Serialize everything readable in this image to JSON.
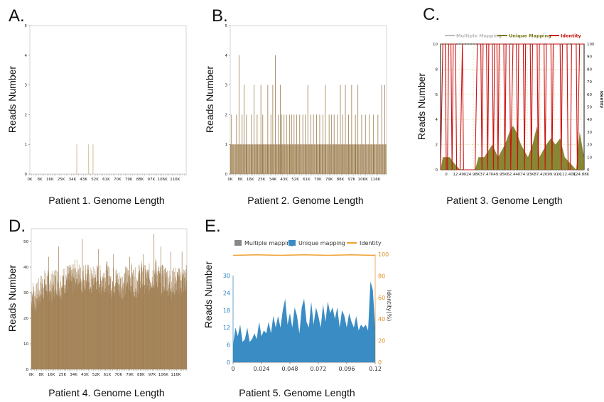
{
  "chart_data": [
    {
      "type": "bar",
      "panel_label": "A.",
      "caption": "Patient 1. Genome Length",
      "ylabel": "Reads Number",
      "ylim": [
        0,
        5
      ],
      "yticks": [
        0,
        1,
        2,
        3,
        4,
        5
      ],
      "xticks": [
        "0K",
        "8K",
        "16K",
        "25K",
        "34K",
        "43K",
        "52K",
        "61K",
        "70K",
        "79K",
        "88K",
        "97K",
        "106K",
        "116K"
      ],
      "xmax": 124900,
      "bar_color": "#c9a97a",
      "bars": [
        [
          37500,
          1
        ],
        [
          47000,
          1
        ],
        [
          50500,
          1
        ]
      ]
    },
    {
      "type": "bar",
      "panel_label": "B.",
      "caption": "Patient 2. Genome Length",
      "ylabel": "Reads Number",
      "ylim": [
        0,
        5
      ],
      "yticks": [
        0,
        1,
        2,
        3,
        4,
        5
      ],
      "xticks": [
        "0K",
        "8K",
        "16K",
        "25K",
        "34K",
        "43K",
        "52K",
        "61K",
        "70K",
        "79K",
        "88K",
        "97K",
        "106K",
        "116K"
      ],
      "xmax": 124900,
      "bar_color": "#9a7a4a",
      "baseline_value": 1,
      "bars": [
        [
          1000,
          2
        ],
        [
          5000,
          2
        ],
        [
          7000,
          4
        ],
        [
          9500,
          2
        ],
        [
          11000,
          3
        ],
        [
          13000,
          2
        ],
        [
          17000,
          2
        ],
        [
          19000,
          3
        ],
        [
          21500,
          2
        ],
        [
          24500,
          3
        ],
        [
          26000,
          2
        ],
        [
          30000,
          3
        ],
        [
          32500,
          2
        ],
        [
          34000,
          3
        ],
        [
          36000,
          4
        ],
        [
          38500,
          2
        ],
        [
          40000,
          3
        ],
        [
          41000,
          2
        ],
        [
          43000,
          2
        ],
        [
          45000,
          2
        ],
        [
          47500,
          2
        ],
        [
          49000,
          2
        ],
        [
          51000,
          2
        ],
        [
          53000,
          2
        ],
        [
          55500,
          2
        ],
        [
          58000,
          2
        ],
        [
          60000,
          2
        ],
        [
          62000,
          3
        ],
        [
          64500,
          2
        ],
        [
          66500,
          2
        ],
        [
          69000,
          2
        ],
        [
          71500,
          2
        ],
        [
          74000,
          2
        ],
        [
          76000,
          3
        ],
        [
          79000,
          2
        ],
        [
          81000,
          2
        ],
        [
          83000,
          2
        ],
        [
          85500,
          2
        ],
        [
          88000,
          3
        ],
        [
          90000,
          2
        ],
        [
          92000,
          3
        ],
        [
          94500,
          2
        ],
        [
          97000,
          3
        ],
        [
          100000,
          2
        ],
        [
          102000,
          3
        ],
        [
          105000,
          2
        ],
        [
          108000,
          2
        ],
        [
          111000,
          2
        ],
        [
          114500,
          2
        ],
        [
          118000,
          2
        ],
        [
          121000,
          3
        ],
        [
          123500,
          3
        ]
      ]
    },
    {
      "type": "area",
      "panel_label": "C.",
      "caption": "Patient 3. Genome Length",
      "ylabel": "Reads Number",
      "y2label": "Identity",
      "ylim": [
        0,
        10
      ],
      "yticks": [
        0,
        2,
        4,
        6,
        8,
        10
      ],
      "y2lim": [
        0,
        100
      ],
      "y2ticks": [
        0,
        10,
        20,
        30,
        40,
        50,
        60,
        70,
        80,
        90,
        100
      ],
      "xticks": [
        "0",
        "12.49K",
        "24.98K",
        "37.47K",
        "49.95K",
        "62.44K",
        "74.93K",
        "87.42K",
        "99.91K",
        "112.40K",
        "124.88K"
      ],
      "xmax": 124880,
      "legend": [
        {
          "name": "Multiple Mapping",
          "color": "#bbbbbb"
        },
        {
          "name": "Unique Mapping",
          "color": "#7a7a1e"
        },
        {
          "name": "Identity",
          "color": "#cc1111"
        }
      ],
      "unique_mapping": [
        [
          0,
          0
        ],
        [
          2000,
          1
        ],
        [
          8000,
          1
        ],
        [
          12000,
          0.5
        ],
        [
          17000,
          0
        ],
        [
          30000,
          0
        ],
        [
          33000,
          1
        ],
        [
          38000,
          1
        ],
        [
          45000,
          2
        ],
        [
          50000,
          1
        ],
        [
          56000,
          2
        ],
        [
          60000,
          3
        ],
        [
          63000,
          3.5
        ],
        [
          66000,
          3
        ],
        [
          70000,
          2
        ],
        [
          76000,
          1
        ],
        [
          80000,
          2
        ],
        [
          84000,
          3.5
        ],
        [
          86000,
          1
        ],
        [
          92000,
          2
        ],
        [
          96000,
          2.5
        ],
        [
          100000,
          2
        ],
        [
          104000,
          2.5
        ],
        [
          108000,
          1
        ],
        [
          113000,
          0.5
        ],
        [
          118000,
          0
        ],
        [
          121000,
          3
        ],
        [
          124880,
          1
        ]
      ],
      "identity": [
        [
          0,
          0
        ],
        [
          2000,
          100
        ],
        [
          4000,
          100
        ],
        [
          5000,
          0
        ],
        [
          6000,
          0
        ],
        [
          7000,
          100
        ],
        [
          9000,
          100
        ],
        [
          10000,
          0
        ],
        [
          11000,
          100
        ],
        [
          13000,
          100
        ],
        [
          14000,
          0
        ],
        [
          17000,
          0
        ],
        [
          19000,
          100
        ],
        [
          20000,
          0
        ],
        [
          22000,
          0
        ],
        [
          30000,
          0
        ],
        [
          32000,
          100
        ],
        [
          35000,
          100
        ],
        [
          36000,
          0
        ],
        [
          37000,
          100
        ],
        [
          40000,
          100
        ],
        [
          41000,
          0
        ],
        [
          42000,
          100
        ],
        [
          45000,
          100
        ],
        [
          46000,
          0
        ],
        [
          47000,
          100
        ],
        [
          49000,
          100
        ],
        [
          50000,
          0
        ],
        [
          51000,
          100
        ],
        [
          55000,
          100
        ],
        [
          56000,
          0
        ],
        [
          57000,
          100
        ],
        [
          60000,
          100
        ],
        [
          61000,
          0
        ],
        [
          63000,
          100
        ],
        [
          66000,
          100
        ],
        [
          67000,
          0
        ],
        [
          68000,
          100
        ],
        [
          72000,
          100
        ],
        [
          73000,
          0
        ],
        [
          74000,
          100
        ],
        [
          78000,
          100
        ],
        [
          79000,
          0
        ],
        [
          80000,
          100
        ],
        [
          84000,
          100
        ],
        [
          85000,
          0
        ],
        [
          86000,
          100
        ],
        [
          90000,
          100
        ],
        [
          91000,
          0
        ],
        [
          92000,
          100
        ],
        [
          96000,
          100
        ],
        [
          97000,
          0
        ],
        [
          98000,
          100
        ],
        [
          104000,
          100
        ],
        [
          105000,
          0
        ],
        [
          106000,
          100
        ],
        [
          110000,
          100
        ],
        [
          111000,
          0
        ],
        [
          113000,
          0
        ],
        [
          114000,
          100
        ],
        [
          118000,
          100
        ],
        [
          119000,
          0
        ],
        [
          121000,
          100
        ],
        [
          124880,
          100
        ]
      ]
    },
    {
      "type": "bar",
      "panel_label": "D.",
      "caption": "Patient 4. Genome Length",
      "ylabel": "Reads Number",
      "ylim": [
        0,
        55
      ],
      "yticks": [
        0,
        10,
        20,
        30,
        40,
        50
      ],
      "xticks": [
        "0K",
        "8K",
        "16K",
        "25K",
        "34K",
        "43K",
        "52K",
        "61K",
        "70K",
        "79K",
        "88K",
        "97K",
        "106K",
        "116K"
      ],
      "xmax": 124900,
      "bar_color": "#a07e52",
      "profile": [
        [
          0,
          28
        ],
        [
          4000,
          26
        ],
        [
          8000,
          30
        ],
        [
          12000,
          32
        ],
        [
          16000,
          30
        ],
        [
          20000,
          33
        ],
        [
          24000,
          31
        ],
        [
          28000,
          34
        ],
        [
          32000,
          33
        ],
        [
          36000,
          36
        ],
        [
          40000,
          33
        ],
        [
          44000,
          35
        ],
        [
          48000,
          32
        ],
        [
          52000,
          34
        ],
        [
          56000,
          33
        ],
        [
          60000,
          35
        ],
        [
          64000,
          32
        ],
        [
          68000,
          33
        ],
        [
          72000,
          31
        ],
        [
          76000,
          33
        ],
        [
          80000,
          34
        ],
        [
          84000,
          32
        ],
        [
          88000,
          35
        ],
        [
          92000,
          33
        ],
        [
          96000,
          34
        ],
        [
          100000,
          36
        ],
        [
          104000,
          33
        ],
        [
          108000,
          34
        ],
        [
          112000,
          31
        ],
        [
          116000,
          33
        ],
        [
          120000,
          32
        ],
        [
          124900,
          34
        ]
      ],
      "peaks": [
        [
          14000,
          44
        ],
        [
          22000,
          48
        ],
        [
          41000,
          51
        ],
        [
          54000,
          47
        ],
        [
          66000,
          45
        ],
        [
          79000,
          44
        ],
        [
          90000,
          45
        ],
        [
          98500,
          53
        ],
        [
          104000,
          48
        ],
        [
          112000,
          46
        ],
        [
          121000,
          46
        ]
      ]
    },
    {
      "type": "area",
      "panel_label": "E.",
      "caption": "Patient 5. Genome Length",
      "ylabel": "Reads Number",
      "y2label": "Identity(%)",
      "ylim": [
        0,
        30
      ],
      "yticks": [
        0,
        6,
        12,
        18,
        24,
        30
      ],
      "y2lim": [
        0,
        100
      ],
      "y2ticks": [
        0,
        20,
        40,
        60,
        80,
        100
      ],
      "xlim": [
        0,
        0.12
      ],
      "xticks": [
        "0",
        "0.024",
        "0.048",
        "0.072",
        "0.096",
        "0.12"
      ],
      "legend": [
        {
          "name": "Multiple mapping",
          "color": "#888888"
        },
        {
          "name": "Unique mapping",
          "color": "#3a8cc4"
        },
        {
          "name": "Identity",
          "color": "#f0a030"
        }
      ],
      "unique_mapping": [
        [
          0,
          6
        ],
        [
          0.002,
          12
        ],
        [
          0.004,
          9
        ],
        [
          0.006,
          13
        ],
        [
          0.008,
          7
        ],
        [
          0.01,
          8
        ],
        [
          0.012,
          12
        ],
        [
          0.014,
          7
        ],
        [
          0.016,
          8
        ],
        [
          0.018,
          10
        ],
        [
          0.02,
          8
        ],
        [
          0.022,
          14
        ],
        [
          0.024,
          9
        ],
        [
          0.026,
          11
        ],
        [
          0.028,
          10
        ],
        [
          0.03,
          14
        ],
        [
          0.032,
          10
        ],
        [
          0.034,
          16
        ],
        [
          0.036,
          12
        ],
        [
          0.038,
          16
        ],
        [
          0.04,
          12
        ],
        [
          0.042,
          18
        ],
        [
          0.044,
          22
        ],
        [
          0.046,
          13
        ],
        [
          0.048,
          17
        ],
        [
          0.05,
          12
        ],
        [
          0.052,
          19
        ],
        [
          0.054,
          16
        ],
        [
          0.056,
          10
        ],
        [
          0.058,
          19
        ],
        [
          0.06,
          22
        ],
        [
          0.062,
          14
        ],
        [
          0.064,
          12
        ],
        [
          0.066,
          21
        ],
        [
          0.068,
          13
        ],
        [
          0.07,
          19
        ],
        [
          0.072,
          16
        ],
        [
          0.074,
          12
        ],
        [
          0.076,
          20
        ],
        [
          0.078,
          14
        ],
        [
          0.08,
          21
        ],
        [
          0.082,
          17
        ],
        [
          0.084,
          19
        ],
        [
          0.086,
          15
        ],
        [
          0.088,
          19
        ],
        [
          0.09,
          12
        ],
        [
          0.092,
          18
        ],
        [
          0.094,
          16
        ],
        [
          0.096,
          12
        ],
        [
          0.098,
          17
        ],
        [
          0.1,
          14
        ],
        [
          0.102,
          12
        ],
        [
          0.104,
          16
        ],
        [
          0.106,
          11
        ],
        [
          0.108,
          13
        ],
        [
          0.11,
          12
        ],
        [
          0.112,
          13
        ],
        [
          0.114,
          11
        ],
        [
          0.116,
          28
        ],
        [
          0.118,
          25
        ],
        [
          0.12,
          12
        ]
      ],
      "identity": [
        [
          0,
          99
        ],
        [
          0.02,
          99.5
        ],
        [
          0.04,
          99
        ],
        [
          0.06,
          99.5
        ],
        [
          0.08,
          99
        ],
        [
          0.1,
          99.5
        ],
        [
          0.12,
          99
        ]
      ]
    }
  ]
}
